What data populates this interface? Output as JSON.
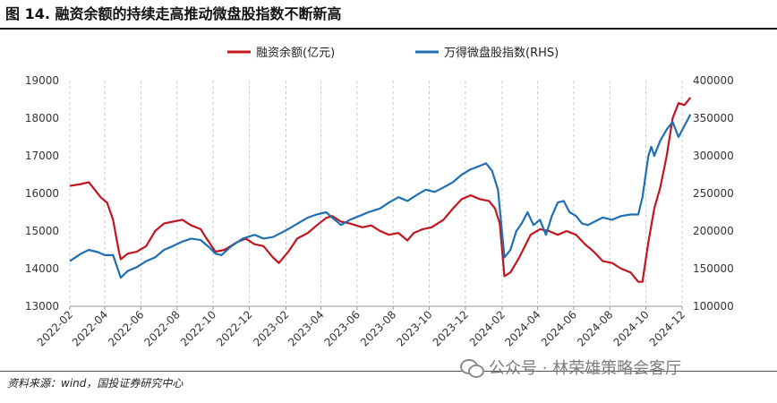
{
  "header": {
    "title": "图 14. 融资余额的持续走高推动微盘股指数不断新高"
  },
  "footer": {
    "source": "资料来源：wind，国投证券研究中心",
    "watermark": "公众号 · 林荣雄策略会客厅"
  },
  "chart_data": {
    "type": "line",
    "title": "",
    "legend_position": "top",
    "x_ticks": [
      "2022-02",
      "2022-04",
      "2022-06",
      "2022-08",
      "2022-10",
      "2022-12",
      "2023-02",
      "2023-04",
      "2023-06",
      "2023-08",
      "2023-10",
      "2023-12",
      "2024-02",
      "2024-04",
      "2024-06",
      "2024-08",
      "2024-10",
      "2024-12"
    ],
    "y_left": {
      "min": 13000,
      "max": 19000,
      "ticks": [
        13000,
        14000,
        15000,
        16000,
        17000,
        18000,
        19000
      ]
    },
    "y_right": {
      "min": 100000,
      "max": 400000,
      "ticks": [
        100000,
        150000,
        200000,
        250000,
        300000,
        350000,
        400000
      ]
    },
    "grid": "vertical-dashed",
    "series": [
      {
        "name": "融资余额(亿元)",
        "axis": "left",
        "color": "#c0161e",
        "points": [
          [
            "2022-02-01",
            16200
          ],
          [
            "2022-02-20",
            16250
          ],
          [
            "2022-03-05",
            16300
          ],
          [
            "2022-03-15",
            16100
          ],
          [
            "2022-03-25",
            15900
          ],
          [
            "2022-04-05",
            15750
          ],
          [
            "2022-04-15",
            15300
          ],
          [
            "2022-04-25",
            14450
          ],
          [
            "2022-04-28",
            14250
          ],
          [
            "2022-05-10",
            14400
          ],
          [
            "2022-05-25",
            14450
          ],
          [
            "2022-06-10",
            14600
          ],
          [
            "2022-06-25",
            15000
          ],
          [
            "2022-07-10",
            15200
          ],
          [
            "2022-07-25",
            15250
          ],
          [
            "2022-08-10",
            15300
          ],
          [
            "2022-08-25",
            15150
          ],
          [
            "2022-09-10",
            15050
          ],
          [
            "2022-09-20",
            14800
          ],
          [
            "2022-10-05",
            14450
          ],
          [
            "2022-10-20",
            14500
          ],
          [
            "2022-11-10",
            14700
          ],
          [
            "2022-11-25",
            14800
          ],
          [
            "2022-12-10",
            14650
          ],
          [
            "2022-12-25",
            14600
          ],
          [
            "2023-01-10",
            14300
          ],
          [
            "2023-01-20",
            14150
          ],
          [
            "2023-02-05",
            14450
          ],
          [
            "2023-02-20",
            14800
          ],
          [
            "2023-03-10",
            14950
          ],
          [
            "2023-03-25",
            15150
          ],
          [
            "2023-04-10",
            15350
          ],
          [
            "2023-04-20",
            15400
          ],
          [
            "2023-05-05",
            15250
          ],
          [
            "2023-05-20",
            15200
          ],
          [
            "2023-06-10",
            15100
          ],
          [
            "2023-06-25",
            15150
          ],
          [
            "2023-07-10",
            15000
          ],
          [
            "2023-07-25",
            14900
          ],
          [
            "2023-08-10",
            14950
          ],
          [
            "2023-08-25",
            14750
          ],
          [
            "2023-09-05",
            14950
          ],
          [
            "2023-09-20",
            15050
          ],
          [
            "2023-10-05",
            15100
          ],
          [
            "2023-10-25",
            15300
          ],
          [
            "2023-11-10",
            15600
          ],
          [
            "2023-11-25",
            15850
          ],
          [
            "2023-12-10",
            15950
          ],
          [
            "2023-12-25",
            15850
          ],
          [
            "2024-01-10",
            15800
          ],
          [
            "2024-01-20",
            15600
          ],
          [
            "2024-01-28",
            15200
          ],
          [
            "2024-02-05",
            13800
          ],
          [
            "2024-02-15",
            13900
          ],
          [
            "2024-03-01",
            14300
          ],
          [
            "2024-03-20",
            14900
          ],
          [
            "2024-04-05",
            15050
          ],
          [
            "2024-04-20",
            15000
          ],
          [
            "2024-05-05",
            14900
          ],
          [
            "2024-05-20",
            15000
          ],
          [
            "2024-06-05",
            14900
          ],
          [
            "2024-06-20",
            14650
          ],
          [
            "2024-07-05",
            14450
          ],
          [
            "2024-07-20",
            14200
          ],
          [
            "2024-08-05",
            14150
          ],
          [
            "2024-08-20",
            14000
          ],
          [
            "2024-09-05",
            13900
          ],
          [
            "2024-09-18",
            13650
          ],
          [
            "2024-09-25",
            13650
          ],
          [
            "2024-10-05",
            14700
          ],
          [
            "2024-10-15",
            15600
          ],
          [
            "2024-10-25",
            16150
          ],
          [
            "2024-11-05",
            17000
          ],
          [
            "2024-11-15",
            18000
          ],
          [
            "2024-11-25",
            18400
          ],
          [
            "2024-12-05",
            18350
          ],
          [
            "2024-12-15",
            18550
          ]
        ]
      },
      {
        "name": "万得微盘股指数(RHS)",
        "axis": "right",
        "color": "#1f6fb2",
        "points": [
          [
            "2022-02-01",
            160000
          ],
          [
            "2022-02-20",
            170000
          ],
          [
            "2022-03-05",
            175000
          ],
          [
            "2022-03-20",
            172000
          ],
          [
            "2022-04-01",
            168000
          ],
          [
            "2022-04-15",
            168000
          ],
          [
            "2022-04-25",
            145000
          ],
          [
            "2022-04-28",
            138000
          ],
          [
            "2022-05-10",
            147000
          ],
          [
            "2022-05-25",
            152000
          ],
          [
            "2022-06-10",
            160000
          ],
          [
            "2022-06-25",
            165000
          ],
          [
            "2022-07-10",
            175000
          ],
          [
            "2022-07-25",
            180000
          ],
          [
            "2022-08-10",
            186000
          ],
          [
            "2022-08-25",
            190000
          ],
          [
            "2022-09-10",
            188000
          ],
          [
            "2022-09-25",
            178000
          ],
          [
            "2022-10-05",
            170000
          ],
          [
            "2022-10-15",
            168000
          ],
          [
            "2022-11-01",
            180000
          ],
          [
            "2022-11-20",
            190000
          ],
          [
            "2022-12-10",
            195000
          ],
          [
            "2022-12-25",
            190000
          ],
          [
            "2023-01-10",
            192000
          ],
          [
            "2023-01-25",
            198000
          ],
          [
            "2023-02-10",
            205000
          ],
          [
            "2023-02-25",
            212000
          ],
          [
            "2023-03-10",
            218000
          ],
          [
            "2023-03-25",
            222000
          ],
          [
            "2023-04-10",
            225000
          ],
          [
            "2023-04-20",
            218000
          ],
          [
            "2023-05-05",
            208000
          ],
          [
            "2023-05-20",
            215000
          ],
          [
            "2023-06-05",
            220000
          ],
          [
            "2023-06-20",
            225000
          ],
          [
            "2023-07-10",
            230000
          ],
          [
            "2023-07-25",
            238000
          ],
          [
            "2023-08-10",
            245000
          ],
          [
            "2023-08-25",
            240000
          ],
          [
            "2023-09-10",
            248000
          ],
          [
            "2023-09-25",
            255000
          ],
          [
            "2023-10-10",
            252000
          ],
          [
            "2023-10-25",
            258000
          ],
          [
            "2023-11-10",
            265000
          ],
          [
            "2023-11-25",
            275000
          ],
          [
            "2023-12-10",
            282000
          ],
          [
            "2023-12-20",
            285000
          ],
          [
            "2024-01-05",
            290000
          ],
          [
            "2024-01-15",
            280000
          ],
          [
            "2024-01-25",
            255000
          ],
          [
            "2024-02-05",
            165000
          ],
          [
            "2024-02-15",
            175000
          ],
          [
            "2024-02-25",
            200000
          ],
          [
            "2024-03-05",
            210000
          ],
          [
            "2024-03-15",
            225000
          ],
          [
            "2024-03-25",
            208000
          ],
          [
            "2024-04-05",
            215000
          ],
          [
            "2024-04-15",
            195000
          ],
          [
            "2024-04-25",
            220000
          ],
          [
            "2024-05-05",
            238000
          ],
          [
            "2024-05-15",
            240000
          ],
          [
            "2024-05-25",
            225000
          ],
          [
            "2024-06-05",
            220000
          ],
          [
            "2024-06-15",
            210000
          ],
          [
            "2024-06-25",
            208000
          ],
          [
            "2024-07-05",
            212000
          ],
          [
            "2024-07-20",
            218000
          ],
          [
            "2024-08-05",
            215000
          ],
          [
            "2024-08-20",
            220000
          ],
          [
            "2024-09-05",
            222000
          ],
          [
            "2024-09-18",
            222000
          ],
          [
            "2024-09-25",
            245000
          ],
          [
            "2024-10-05",
            300000
          ],
          [
            "2024-10-10",
            312000
          ],
          [
            "2024-10-15",
            300000
          ],
          [
            "2024-10-25",
            320000
          ],
          [
            "2024-11-05",
            335000
          ],
          [
            "2024-11-15",
            345000
          ],
          [
            "2024-11-25",
            325000
          ],
          [
            "2024-12-05",
            340000
          ],
          [
            "2024-12-15",
            355000
          ]
        ]
      }
    ]
  }
}
